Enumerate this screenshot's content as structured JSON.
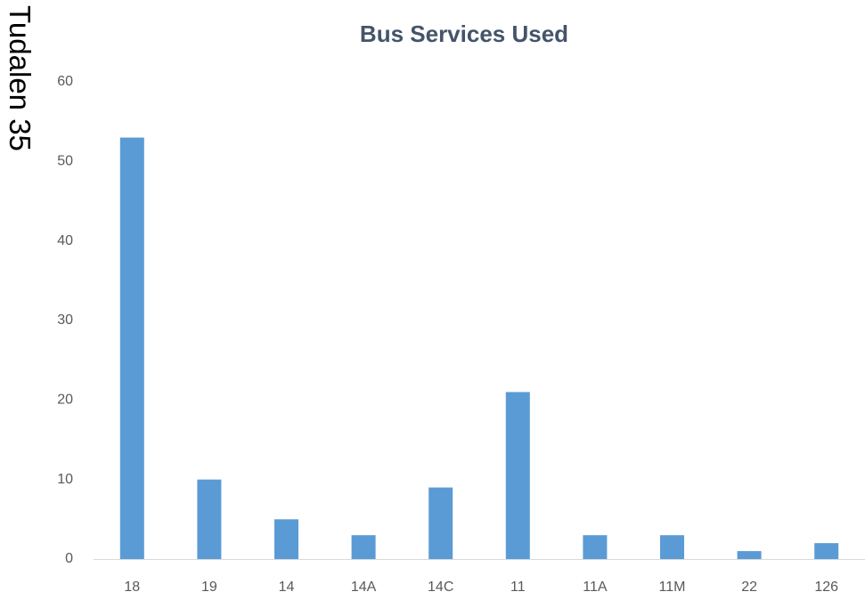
{
  "page_label": "Tudalen 35",
  "chart_data": {
    "type": "bar",
    "title": "Bus Services Used",
    "categories": [
      "18",
      "19",
      "14",
      "14A",
      "14C",
      "11",
      "11A",
      "11M",
      "22",
      "126"
    ],
    "values": [
      53,
      10,
      5,
      3,
      9,
      21,
      3,
      3,
      1,
      2
    ],
    "color": "#5b9bd5",
    "ylim": [
      0,
      60
    ],
    "yticks": [
      0,
      10,
      20,
      30,
      40,
      50,
      60
    ],
    "grid": false
  }
}
